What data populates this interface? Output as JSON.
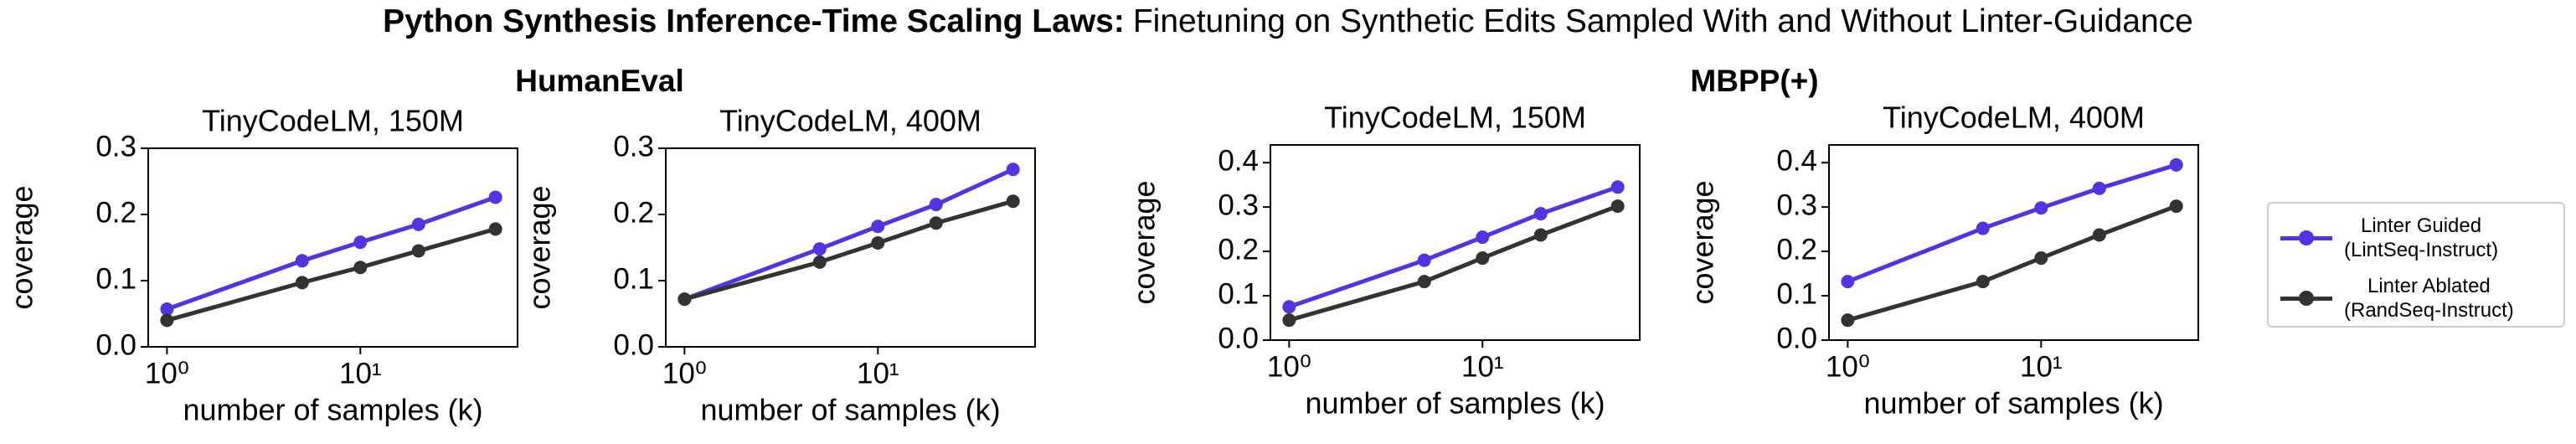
{
  "title_bold": "Python Synthesis Inference-Time Scaling Laws:",
  "title": "Finetuning on Synthetic Edits Sampled With and Without Linter-Guidance",
  "group_titles": [
    "HumanEval",
    "MBPP(+)"
  ],
  "chart_data": [
    {
      "type": "line",
      "title": "TinyCodeLM, 150M",
      "xlabel": "number of samples (k)",
      "ylabel": "coverage",
      "xscale": "log",
      "x": [
        1,
        5,
        10,
        20,
        50
      ],
      "xlim": [
        0.8,
        65
      ],
      "ylim": [
        0,
        0.3
      ],
      "xticks": [
        {
          "value": 1,
          "label": "10⁰"
        },
        {
          "value": 10,
          "label": "10¹"
        }
      ],
      "yticks": [
        {
          "value": 0,
          "label": "0.0"
        },
        0.1,
        0.2,
        0.3
      ],
      "series": [
        {
          "color": "#4f35e3",
          "values": [
            0.057,
            0.13,
            0.158,
            0.185,
            0.226
          ]
        },
        {
          "color": "#333333",
          "values": [
            0.04,
            0.097,
            0.12,
            0.145,
            0.178
          ]
        }
      ]
    },
    {
      "type": "line",
      "title": "TinyCodeLM, 400M",
      "xlabel": "number of samples (k)",
      "ylabel": "coverage",
      "xscale": "log",
      "x": [
        1,
        5,
        10,
        20,
        50
      ],
      "xlim": [
        0.8,
        65
      ],
      "ylim": [
        0,
        0.3
      ],
      "xticks": [
        {
          "value": 1,
          "label": "10⁰"
        },
        {
          "value": 10,
          "label": "10¹"
        }
      ],
      "yticks": [
        {
          "value": 0,
          "label": "0.0"
        },
        0.1,
        0.2,
        0.3
      ],
      "series": [
        {
          "color": "#4f35e3",
          "values": [
            0.072,
            0.148,
            0.182,
            0.215,
            0.268
          ]
        },
        {
          "color": "#333333",
          "values": [
            0.072,
            0.128,
            0.157,
            0.187,
            0.22
          ]
        }
      ]
    },
    {
      "type": "line",
      "title": "TinyCodeLM, 150M",
      "xlabel": "number of samples (k)",
      "ylabel": "coverage",
      "xscale": "log",
      "x": [
        1,
        5,
        10,
        20,
        50
      ],
      "xlim": [
        0.8,
        65
      ],
      "ylim": [
        0,
        0.44
      ],
      "xticks": [
        {
          "value": 1,
          "label": "10⁰"
        },
        {
          "value": 10,
          "label": "10¹"
        }
      ],
      "yticks": [
        {
          "value": 0,
          "label": "0.0"
        },
        0.1,
        0.2,
        0.3,
        0.4
      ],
      "series": [
        {
          "color": "#4f35e3",
          "values": [
            0.075,
            0.18,
            0.232,
            0.285,
            0.345
          ]
        },
        {
          "color": "#333333",
          "values": [
            0.045,
            0.132,
            0.185,
            0.237,
            0.302
          ]
        }
      ]
    },
    {
      "type": "line",
      "title": "TinyCodeLM, 400M",
      "xlabel": "number of samples (k)",
      "ylabel": "coverage",
      "xscale": "log",
      "x": [
        1,
        5,
        10,
        20,
        50
      ],
      "xlim": [
        0.8,
        65
      ],
      "ylim": [
        0,
        0.44
      ],
      "xticks": [
        {
          "value": 1,
          "label": "10⁰"
        },
        {
          "value": 10,
          "label": "10¹"
        }
      ],
      "yticks": [
        {
          "value": 0,
          "label": "0.0"
        },
        0.1,
        0.2,
        0.3,
        0.4
      ],
      "series": [
        {
          "name": "Linter Guided\n(LintSeq-Instruct)",
          "color": "#4f35e3",
          "values": [
            0.132,
            0.252,
            0.298,
            0.342,
            0.395
          ]
        },
        {
          "name": "Linter Ablated\n(RandSeq-Instruct)",
          "color": "#333333",
          "values": [
            0.045,
            0.132,
            0.185,
            0.237,
            0.302
          ]
        }
      ]
    }
  ]
}
